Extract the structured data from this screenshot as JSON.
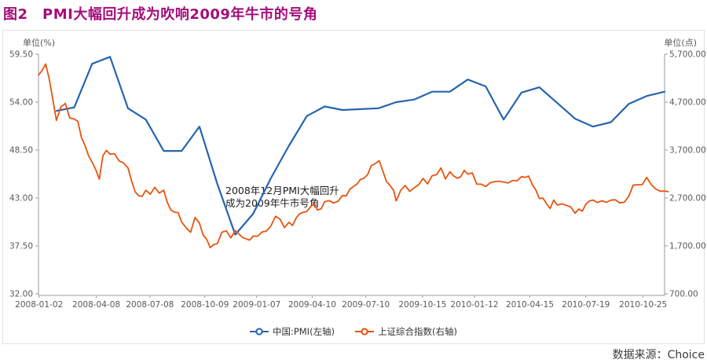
{
  "page": {
    "title": "图2　PMI大幅回升成为吹响2009年牛市的号角",
    "source": "数据来源：Choice"
  },
  "panel": {
    "left_unit": "单位(%)",
    "right_unit": "单位(点)"
  },
  "annotation": {
    "line1": "2008年12月PMI大幅回升",
    "line2": "成为2009年牛市号角"
  },
  "legend": [
    {
      "id": "pmi",
      "label": "中国:PMI(左轴)",
      "color": "#2565b0"
    },
    {
      "id": "sse",
      "label": "上证综合指数(右轴)",
      "color": "#e8540e"
    }
  ],
  "colors": {
    "title": "#a40d7a",
    "axis_line": "#9b9b9b",
    "axis_text": "#595959",
    "pmi_line": "#2565b0",
    "sse_line": "#e8540e"
  },
  "chart_data": {
    "type": "line",
    "title": "PMI大幅回升成为吹响2009年牛市的号角",
    "grid": false,
    "legend_position": "bottom",
    "left_axis": {
      "label": "单位(%)",
      "min": 32.0,
      "max": 59.5,
      "ticks": [
        {
          "label": "59.50",
          "value": 59.5
        },
        {
          "label": "54.00",
          "value": 54.0
        },
        {
          "label": "48.50",
          "value": 48.5
        },
        {
          "label": "43.00",
          "value": 43.0
        },
        {
          "label": "37.50",
          "value": 37.5
        },
        {
          "label": "32.00",
          "value": 32.0
        }
      ]
    },
    "right_axis": {
      "label": "单位(点)",
      "min": 700,
      "max": 5700,
      "ticks": [
        {
          "label": "5,700.00",
          "value": 5700
        },
        {
          "label": "4,700.00",
          "value": 4700
        },
        {
          "label": "3,700.00",
          "value": 3700
        },
        {
          "label": "2,700.00",
          "value": 2700
        },
        {
          "label": "1,700.00",
          "value": 1700
        },
        {
          "label": "700.00",
          "value": 700
        }
      ]
    },
    "x_axis": {
      "months_span": 35,
      "ticks": [
        {
          "label": "2008-01-02",
          "m": 0.03
        },
        {
          "label": "2008-04-08",
          "m": 3.23
        },
        {
          "label": "2008-07-08",
          "m": 6.23
        },
        {
          "label": "2008-10-09",
          "m": 9.3
        },
        {
          "label": "2009-01-07",
          "m": 12.2
        },
        {
          "label": "2009-04-10",
          "m": 15.3
        },
        {
          "label": "2009-07-10",
          "m": 18.3
        },
        {
          "label": "2009-10-15",
          "m": 21.47
        },
        {
          "label": "2010-01-12",
          "m": 24.37
        },
        {
          "label": "2010-04-15",
          "m": 27.47
        },
        {
          "label": "2010-07-19",
          "m": 30.6
        },
        {
          "label": "2010-10-25",
          "m": 33.8
        }
      ]
    },
    "series": [
      {
        "name": "中国:PMI(左轴)",
        "axis": "left",
        "color": "#2565b0",
        "width": 2.2,
        "frequency": "monthly (plotted at month end)",
        "months": [
          "2008-01",
          "2008-02",
          "2008-03",
          "2008-04",
          "2008-05",
          "2008-06",
          "2008-07",
          "2008-08",
          "2008-09",
          "2008-10",
          "2008-11",
          "2008-12",
          "2009-01",
          "2009-02",
          "2009-03",
          "2009-04",
          "2009-05",
          "2009-06",
          "2009-07",
          "2009-08",
          "2009-09",
          "2009-10",
          "2009-11",
          "2009-12",
          "2010-01",
          "2010-02",
          "2010-03",
          "2010-04",
          "2010-05",
          "2010-06",
          "2010-07",
          "2010-08",
          "2010-09",
          "2010-10",
          "2010-11"
        ],
        "values": [
          53.0,
          53.4,
          58.4,
          59.2,
          53.3,
          52.0,
          48.4,
          48.4,
          51.2,
          44.6,
          38.8,
          41.2,
          45.3,
          49.0,
          52.4,
          53.5,
          53.1,
          53.2,
          53.3,
          54.0,
          54.3,
          55.2,
          55.2,
          56.6,
          55.8,
          52.0,
          55.1,
          55.7,
          53.9,
          52.1,
          51.2,
          51.7,
          53.8,
          54.7,
          55.2
        ]
      },
      {
        "name": "上证综合指数(右轴)",
        "axis": "right",
        "color": "#e8540e",
        "width": 1.8,
        "frequency": "weekly (m = months since 2008-01)",
        "points": [
          [
            0,
            5265
          ],
          [
            0.2,
            5361
          ],
          [
            0.4,
            5497
          ],
          [
            0.6,
            5180
          ],
          [
            0.8,
            4761
          ],
          [
            1,
            4320
          ],
          [
            1.25,
            4599
          ],
          [
            1.5,
            4672
          ],
          [
            1.75,
            4370
          ],
          [
            2,
            4348
          ],
          [
            2.2,
            4300
          ],
          [
            2.4,
            3962
          ],
          [
            2.6,
            3796
          ],
          [
            2.8,
            3580
          ],
          [
            3,
            3446
          ],
          [
            3.2,
            3291
          ],
          [
            3.4,
            3094
          ],
          [
            3.6,
            3584
          ],
          [
            3.8,
            3693
          ],
          [
            4,
            3613
          ],
          [
            4.25,
            3624
          ],
          [
            4.5,
            3473
          ],
          [
            4.75,
            3433
          ],
          [
            5,
            3329
          ],
          [
            5.2,
            3063
          ],
          [
            5.4,
            2831
          ],
          [
            5.6,
            2748
          ],
          [
            5.8,
            2736
          ],
          [
            6,
            2862
          ],
          [
            6.25,
            2778
          ],
          [
            6.5,
            2925
          ],
          [
            6.75,
            2801
          ],
          [
            7,
            2862
          ],
          [
            7.2,
            2605
          ],
          [
            7.4,
            2450
          ],
          [
            7.6,
            2405
          ],
          [
            7.8,
            2397
          ],
          [
            8,
            2202
          ],
          [
            8.25,
            2079
          ],
          [
            8.5,
            1986
          ],
          [
            8.75,
            2293
          ],
          [
            9,
            2173
          ],
          [
            9.2,
            1930
          ],
          [
            9.4,
            1839
          ],
          [
            9.6,
            1664
          ],
          [
            9.8,
            1729
          ],
          [
            10,
            1747
          ],
          [
            10.25,
            1986
          ],
          [
            10.5,
            2017
          ],
          [
            10.75,
            1871
          ],
          [
            11,
            2018
          ],
          [
            11.2,
            1954
          ],
          [
            11.4,
            1877
          ],
          [
            11.6,
            1851
          ],
          [
            11.8,
            1821
          ],
          [
            12,
            1905
          ],
          [
            12.25,
            1904
          ],
          [
            12.5,
            1990
          ],
          [
            12.75,
            2011
          ],
          [
            13,
            2121
          ],
          [
            13.25,
            2320
          ],
          [
            13.5,
            2261
          ],
          [
            13.75,
            2082
          ],
          [
            14,
            2194
          ],
          [
            14.2,
            2128
          ],
          [
            14.4,
            2281
          ],
          [
            14.6,
            2374
          ],
          [
            14.8,
            2400
          ],
          [
            15,
            2420
          ],
          [
            15.2,
            2513
          ],
          [
            15.4,
            2580
          ],
          [
            15.6,
            2448
          ],
          [
            15.8,
            2477
          ],
          [
            16,
            2625
          ],
          [
            16.25,
            2645
          ],
          [
            16.5,
            2597
          ],
          [
            16.75,
            2633
          ],
          [
            17,
            2754
          ],
          [
            17.2,
            2743
          ],
          [
            17.4,
            2880
          ],
          [
            17.6,
            2940
          ],
          [
            17.8,
            2988
          ],
          [
            18,
            3088
          ],
          [
            18.2,
            3113
          ],
          [
            18.4,
            3189
          ],
          [
            18.6,
            3372
          ],
          [
            18.8,
            3412
          ],
          [
            19.05,
            3478
          ],
          [
            19.25,
            3260
          ],
          [
            19.45,
            3047
          ],
          [
            19.65,
            2960
          ],
          [
            19.85,
            2861
          ],
          [
            20,
            2639
          ],
          [
            20.25,
            2861
          ],
          [
            20.5,
            2963
          ],
          [
            20.75,
            2838
          ],
          [
            21,
            2911
          ],
          [
            21.25,
            2977
          ],
          [
            21.5,
            3108
          ],
          [
            21.75,
            2995
          ],
          [
            22,
            3164
          ],
          [
            22.25,
            3187
          ],
          [
            22.5,
            3330
          ],
          [
            22.75,
            3096
          ],
          [
            23,
            3247
          ],
          [
            23.2,
            3164
          ],
          [
            23.4,
            3113
          ],
          [
            23.6,
            3141
          ],
          [
            23.8,
            3277
          ],
          [
            24,
            3196
          ],
          [
            24.25,
            3224
          ],
          [
            24.5,
            2989
          ],
          [
            24.75,
            2989
          ],
          [
            25,
            2939
          ],
          [
            25.25,
            3018
          ],
          [
            25.5,
            3043
          ],
          [
            25.75,
            3051
          ],
          [
            26,
            3031
          ],
          [
            26.25,
            3013
          ],
          [
            26.5,
            3067
          ],
          [
            26.75,
            3059
          ],
          [
            27,
            3145
          ],
          [
            27.2,
            3130
          ],
          [
            27.4,
            3157
          ],
          [
            27.6,
            2983
          ],
          [
            27.8,
            2870
          ],
          [
            28,
            2688
          ],
          [
            28.2,
            2696
          ],
          [
            28.4,
            2583
          ],
          [
            28.6,
            2481
          ],
          [
            28.8,
            2655
          ],
          [
            29,
            2553
          ],
          [
            29.25,
            2578
          ],
          [
            29.5,
            2547
          ],
          [
            29.75,
            2513
          ],
          [
            30,
            2382
          ],
          [
            30.2,
            2471
          ],
          [
            30.4,
            2424
          ],
          [
            30.6,
            2572
          ],
          [
            30.8,
            2637
          ],
          [
            31,
            2658
          ],
          [
            31.25,
            2607
          ],
          [
            31.5,
            2642
          ],
          [
            31.75,
            2610
          ],
          [
            32,
            2655
          ],
          [
            32.25,
            2663
          ],
          [
            32.5,
            2598
          ],
          [
            32.75,
            2611
          ],
          [
            33,
            2739
          ],
          [
            33.25,
            2971
          ],
          [
            33.5,
            2975
          ],
          [
            33.75,
            2979
          ],
          [
            34,
            3129
          ],
          [
            34.25,
            2985
          ],
          [
            34.5,
            2888
          ],
          [
            34.75,
            2842
          ],
          [
            35,
            2842
          ],
          [
            35.1,
            2841
          ],
          [
            35.2,
            2832
          ]
        ]
      }
    ],
    "annotation": {
      "text": "2008年12月PMI大幅回升 成为2009年牛市号角",
      "anchor_m": 11,
      "anchor_value": 38.8
    }
  }
}
